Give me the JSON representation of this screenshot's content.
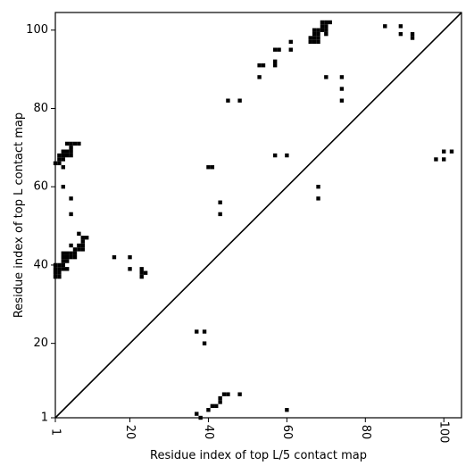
{
  "chart_data": {
    "type": "heatmap",
    "title": "",
    "xlabel": "Residue index of top L/5 contact map",
    "ylabel": "Residue index of top L contact map",
    "xlim": [
      1,
      104.5
    ],
    "ylim": [
      1,
      104.5
    ],
    "x_ticks": [
      1,
      20,
      40,
      60,
      80,
      100
    ],
    "y_ticks": [
      1,
      20,
      40,
      60,
      80,
      100
    ],
    "x_tick_labels": [
      "1",
      "20",
      "40",
      "60",
      "80",
      "100"
    ],
    "y_tick_labels": [
      "1",
      "20",
      "40",
      "60",
      "80",
      "100"
    ],
    "diagonal": true,
    "grid": false,
    "cell_color": "#000000",
    "upper_triangle_contacts": [
      [
        1,
        37
      ],
      [
        1,
        38
      ],
      [
        1,
        39
      ],
      [
        1,
        40
      ],
      [
        2,
        37
      ],
      [
        2,
        38
      ],
      [
        2,
        39
      ],
      [
        2,
        40
      ],
      [
        3,
        39
      ],
      [
        3,
        40
      ],
      [
        4,
        39
      ],
      [
        3,
        41
      ],
      [
        3,
        42
      ],
      [
        3,
        43
      ],
      [
        4,
        41
      ],
      [
        4,
        42
      ],
      [
        4,
        43
      ],
      [
        5,
        42
      ],
      [
        5,
        43
      ],
      [
        6,
        42
      ],
      [
        6,
        43
      ],
      [
        6,
        44
      ],
      [
        7,
        44
      ],
      [
        7,
        45
      ],
      [
        8,
        44
      ],
      [
        8,
        45
      ],
      [
        8,
        46
      ],
      [
        8,
        47
      ],
      [
        9,
        47
      ],
      [
        7,
        48
      ],
      [
        5,
        45
      ],
      [
        1,
        66
      ],
      [
        2,
        66
      ],
      [
        2,
        67
      ],
      [
        2,
        68
      ],
      [
        3,
        67
      ],
      [
        3,
        68
      ],
      [
        3,
        69
      ],
      [
        4,
        68
      ],
      [
        4,
        69
      ],
      [
        5,
        68
      ],
      [
        5,
        69
      ],
      [
        5,
        70
      ],
      [
        4,
        71
      ],
      [
        5,
        71
      ],
      [
        6,
        71
      ],
      [
        7,
        71
      ],
      [
        3,
        65
      ],
      [
        3,
        60
      ],
      [
        5,
        57
      ],
      [
        5,
        53
      ],
      [
        16,
        42
      ],
      [
        20,
        42
      ],
      [
        20,
        39
      ],
      [
        23,
        37
      ],
      [
        23,
        38
      ],
      [
        23,
        39
      ],
      [
        24,
        38
      ],
      [
        40,
        65
      ],
      [
        41,
        65
      ],
      [
        43,
        56
      ],
      [
        43,
        53
      ],
      [
        45,
        82
      ],
      [
        48,
        82
      ],
      [
        53,
        88
      ],
      [
        53,
        91
      ],
      [
        54,
        91
      ],
      [
        57,
        91
      ],
      [
        57,
        92
      ],
      [
        57,
        95
      ],
      [
        58,
        95
      ],
      [
        61,
        95
      ],
      [
        61,
        97
      ],
      [
        57,
        68
      ],
      [
        60,
        68
      ],
      [
        68,
        60
      ],
      [
        68,
        57
      ],
      [
        66,
        97
      ],
      [
        66,
        98
      ],
      [
        67,
        97
      ],
      [
        67,
        98
      ],
      [
        67,
        99
      ],
      [
        67,
        100
      ],
      [
        68,
        97
      ],
      [
        68,
        98
      ],
      [
        68,
        99
      ],
      [
        68,
        100
      ],
      [
        69,
        100
      ],
      [
        69,
        101
      ],
      [
        69,
        102
      ],
      [
        70,
        99
      ],
      [
        70,
        100
      ],
      [
        70,
        101
      ],
      [
        70,
        102
      ],
      [
        71,
        102
      ],
      [
        70,
        88
      ],
      [
        74,
        88
      ],
      [
        74,
        85
      ],
      [
        74,
        82
      ],
      [
        85,
        101
      ],
      [
        89,
        101
      ],
      [
        89,
        99
      ],
      [
        92,
        99
      ],
      [
        92,
        98
      ],
      [
        98,
        67
      ],
      [
        100,
        67
      ],
      [
        100,
        69
      ],
      [
        102,
        69
      ]
    ],
    "lower_triangle_contacts": [
      [
        37,
        23
      ],
      [
        39,
        23
      ],
      [
        39,
        20
      ],
      [
        37,
        2
      ],
      [
        38,
        1
      ],
      [
        40,
        3
      ],
      [
        41,
        4
      ],
      [
        42,
        4
      ],
      [
        43,
        5
      ],
      [
        43,
        6
      ],
      [
        44,
        7
      ],
      [
        45,
        7
      ],
      [
        48,
        7
      ],
      [
        60,
        3
      ]
    ]
  }
}
